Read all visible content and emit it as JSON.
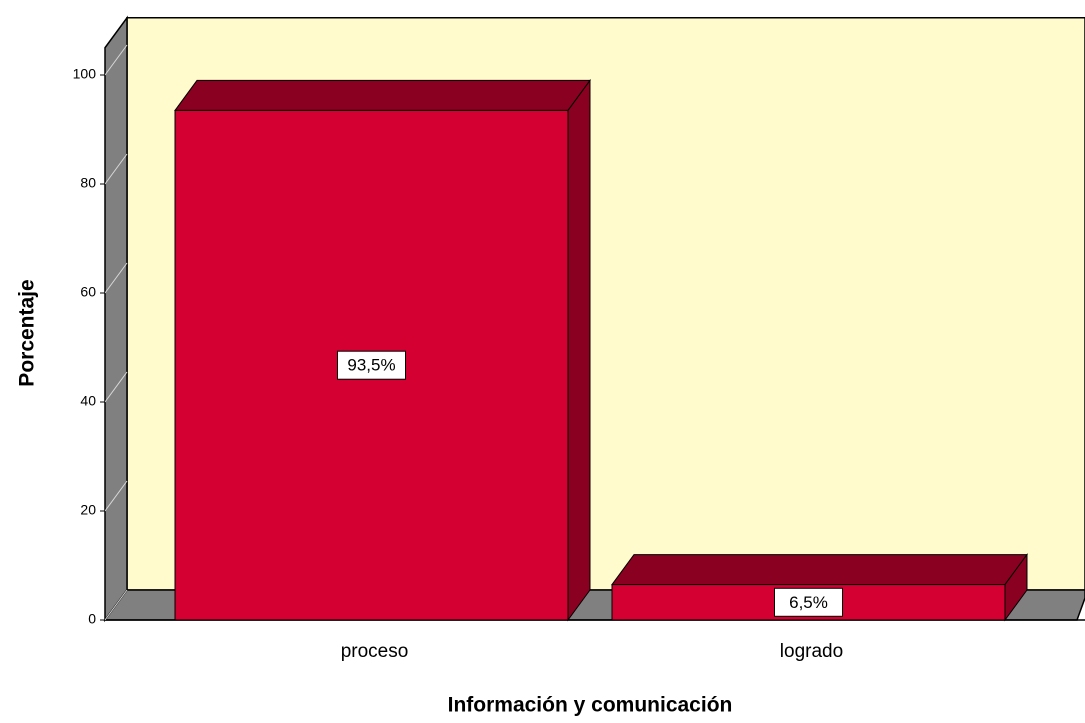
{
  "chart_data": {
    "type": "bar3d",
    "x_label": "Información y comunicación",
    "y_label": "Porcentaje",
    "categories": [
      "proceso",
      "logrado"
    ],
    "values": [
      93.5,
      6.5
    ],
    "value_labels": [
      "93,5%",
      "6,5%"
    ],
    "color": "#d30031",
    "ylim": [
      0,
      105
    ],
    "yticks": [
      0,
      20,
      40,
      60,
      80,
      100
    ]
  }
}
